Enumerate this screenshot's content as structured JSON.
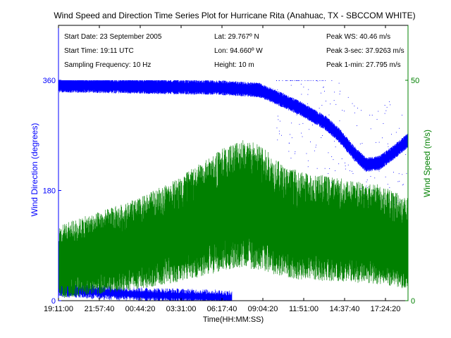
{
  "chart_data": {
    "type": "scatter",
    "title": "Wind Speed and Direction Time Series Plot for Hurricane Rita (Anahuac, TX - SBCCOM WHITE)",
    "xlabel": "Time(HH:MM:SS)",
    "x_ticks": [
      "19:11:00",
      "21:57:40",
      "00:44:20",
      "03:31:00",
      "06:17:40",
      "09:04:20",
      "11:51:00",
      "14:37:40",
      "17:24:20"
    ],
    "left_axis": {
      "label": "Wind Direction (degrees)",
      "ylim": [
        0,
        360
      ],
      "ticks": [
        "0",
        "180",
        "360"
      ],
      "color": "#0000ff"
    },
    "right_axis": {
      "label": "Wind Speed (m/s)",
      "ylim": [
        0,
        50
      ],
      "ticks": [
        "0",
        "50"
      ],
      "color": "#008000"
    },
    "info": {
      "col1": [
        "Start Date: 23 September 2005",
        "Start Time: 19:11 UTC",
        "Sampling Frequency: 10 Hz"
      ],
      "col2": [
        "Lat: 29.767º N",
        "Lon: 94.660º W",
        "Height: 10 m"
      ],
      "col3": [
        "Peak WS: 40.46 m/s",
        "Peak 3-sec: 37.9263 m/s",
        "Peak 1-min: 27.795 m/s"
      ]
    },
    "x_hours": [
      0,
      2.78,
      5.56,
      8.33,
      11.11,
      13.89,
      16.67,
      19.44,
      22.22,
      24.2
    ],
    "series": [
      {
        "axis": "left",
        "color": "#0000ff",
        "x": [
          0,
          2.78,
          5.56,
          8.33,
          11.11,
          13.89,
          14.8,
          16.67,
          18.5,
          19.44,
          20.5,
          21.3,
          22.22,
          23.2,
          24.2
        ],
        "y": [
          352,
          351,
          350,
          349,
          348,
          344,
          335,
          315,
          290,
          270,
          240,
          222,
          225,
          242,
          262
        ]
      },
      {
        "axis": "left",
        "color": "#0000ff",
        "x": [
          0,
          2.78,
          5.56,
          8.33,
          11.11,
          12.0
        ],
        "y": [
          18,
          14,
          10,
          8,
          6,
          4
        ]
      },
      {
        "axis": "right",
        "color": "#008000",
        "x": [
          0,
          2.78,
          5.56,
          8.33,
          11.11,
          12.5,
          13.89,
          15.5,
          16.67,
          19.44,
          22.22,
          24.2
        ],
        "y": [
          8,
          10,
          12,
          15,
          19,
          21,
          20,
          17,
          16,
          15,
          14,
          12
        ]
      }
    ]
  }
}
